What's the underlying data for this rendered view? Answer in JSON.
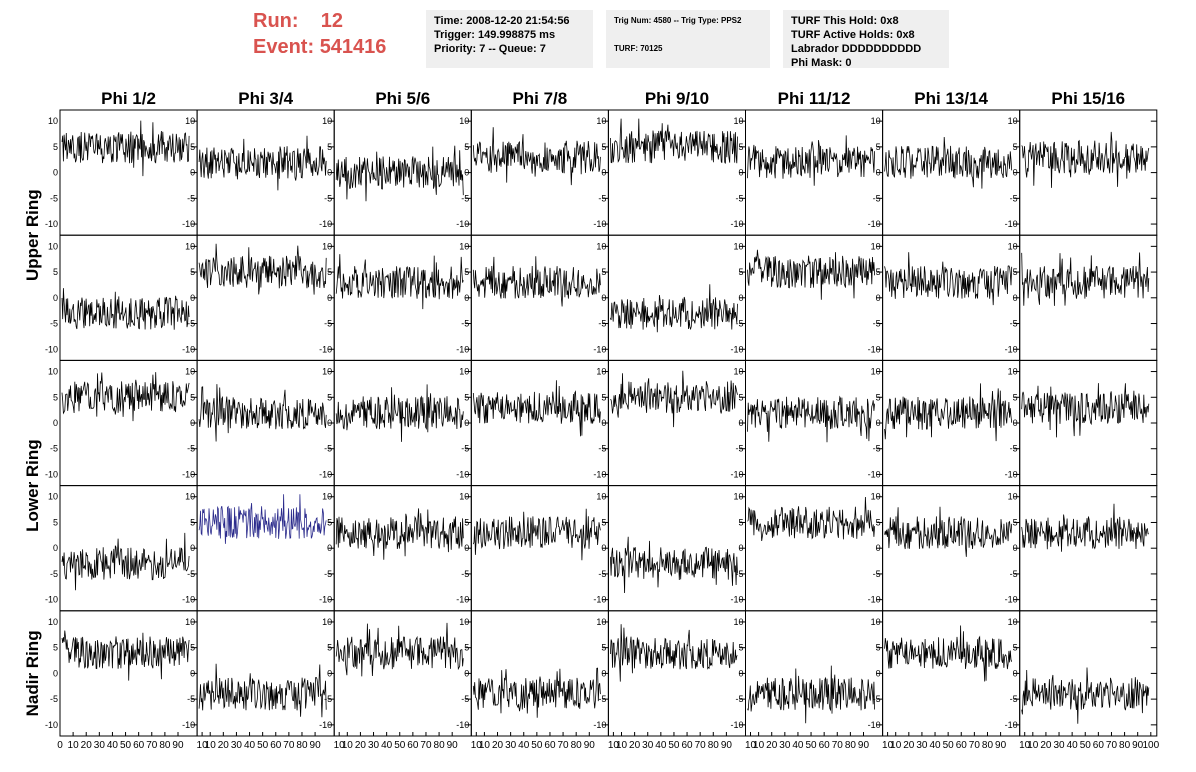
{
  "header": {
    "run_label": "Run:",
    "run_value": "12",
    "event_label": "Event:",
    "event_value": "541416",
    "time": "Time: 2008-12-20 21:54:56",
    "trigger": "Trigger: 149.998875 ms",
    "priority": "Priority: 7 -- Queue: 7",
    "trig_num": "Trig Num: 4580 -- Trig Type: PPS2",
    "turf": "TURF: 70125",
    "turf_this_hold": "TURF This Hold: 0x8",
    "turf_active_holds": "TURF Active Holds: 0x8",
    "labrador": "Labrador DDDDDDDDDD",
    "phi_mask": "Phi Mask: 0"
  },
  "colors": {
    "title_red": "#d9534f",
    "trace": "#000000",
    "highlight_trace": "#2b2b8c",
    "box_bg": "#efefef"
  },
  "chart_data": {
    "type": "line",
    "columns": [
      "Phi 1/2",
      "Phi 3/4",
      "Phi 5/6",
      "Phi 7/8",
      "Phi 9/10",
      "Phi 11/12",
      "Phi 13/14",
      "Phi 15/16"
    ],
    "row_groups": [
      "Upper Ring",
      "Lower Ring",
      "Nadir Ring"
    ],
    "ylim": [
      -11,
      11
    ],
    "yticks": [
      -10,
      -5,
      0,
      5,
      10
    ],
    "xlim": [
      0,
      100
    ],
    "xticks": [
      0,
      10,
      20,
      30,
      40,
      50,
      60,
      70,
      80,
      90,
      100
    ],
    "xtick_labels": [
      "0",
      "10",
      "20",
      "30",
      "40",
      "50",
      "60",
      "70",
      "80",
      "90",
      "10",
      "10",
      "20",
      "30",
      "40",
      "50",
      "60",
      "70",
      "80",
      "90",
      "10",
      "10",
      "20",
      "30",
      "40",
      "50",
      "60",
      "70",
      "80",
      "90",
      "10",
      "10",
      "20",
      "30",
      "40",
      "50",
      "60",
      "70",
      "80",
      "90",
      "10",
      "10",
      "20",
      "30",
      "40",
      "50",
      "60",
      "70",
      "80",
      "90",
      "10",
      "10",
      "20",
      "30",
      "40",
      "50",
      "60",
      "70",
      "80",
      "90",
      "10",
      "10",
      "20",
      "30",
      "40",
      "50",
      "60",
      "70",
      "80",
      "90",
      "10",
      "10",
      "20",
      "30",
      "40",
      "50",
      "60",
      "70",
      "80",
      "90",
      "100"
    ],
    "panel_baselines": [
      [
        5,
        2,
        0,
        3,
        5,
        2,
        2,
        3
      ],
      [
        -3,
        5,
        3,
        3,
        -3,
        5,
        3,
        3
      ],
      [
        5,
        2,
        2,
        3,
        5,
        2,
        2,
        3
      ],
      [
        -3,
        5,
        3,
        3,
        -3,
        5,
        3,
        3
      ],
      [
        4,
        -4,
        4,
        -4,
        4,
        -4,
        4,
        -4
      ]
    ],
    "highlighted_panel": {
      "row": 3,
      "col": 1
    }
  }
}
